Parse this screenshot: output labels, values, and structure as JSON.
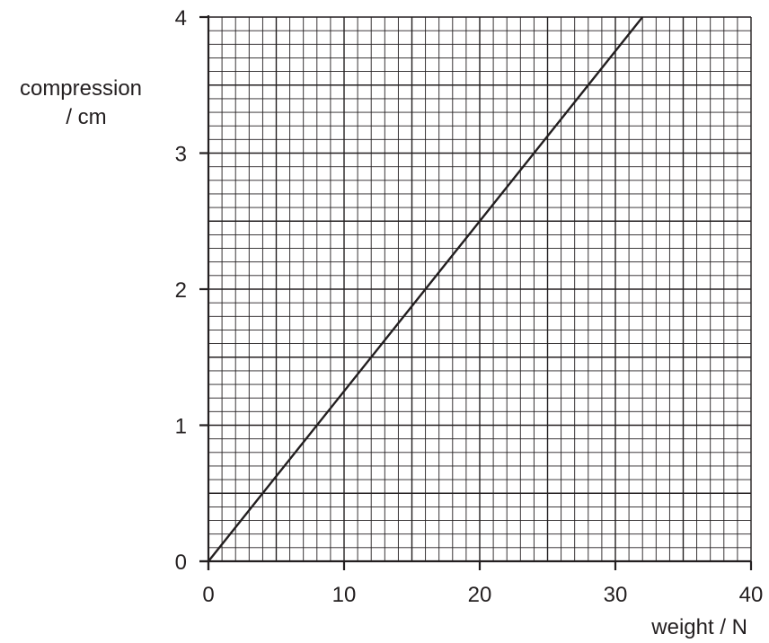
{
  "chart_data": {
    "type": "line",
    "xlabel": "weight / N",
    "ylabel_line1": "compression",
    "ylabel_line2": "/ cm",
    "xlim": [
      0,
      40
    ],
    "ylim": [
      0,
      4
    ],
    "x_ticks": [
      0,
      10,
      20,
      30,
      40
    ],
    "y_ticks": [
      0,
      1,
      2,
      3,
      4
    ],
    "x_minor_step": 1,
    "y_minor_step": 0.1,
    "grid": true,
    "series": [
      {
        "x": [
          0,
          32
        ],
        "y": [
          0,
          4
        ],
        "color": "#231f20"
      }
    ]
  }
}
